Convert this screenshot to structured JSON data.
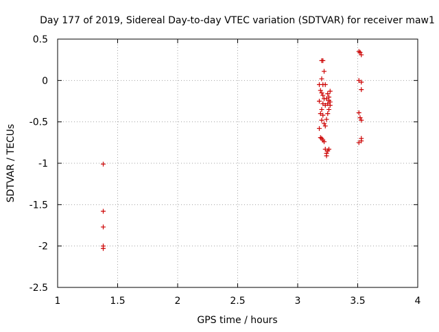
{
  "chart_data": {
    "type": "scatter",
    "title": "Day 177 of 2019, Sidereal Day-to-day VTEC variation (SDTVAR) for receiver maw1",
    "xlabel": "GPS time / hours",
    "ylabel": "SDTVAR / TECUs",
    "xlim": [
      1,
      4
    ],
    "ylim": [
      -2.5,
      0.5
    ],
    "grid": true,
    "legend": "none",
    "marker": "+",
    "color": "#cc0000",
    "x_ticks": [
      "1",
      "1.5",
      "2",
      "2.5",
      "3",
      "3.5",
      "4"
    ],
    "y_ticks": [
      "0.5",
      "0",
      "-0.5",
      "-1",
      "-1.5",
      "-2",
      "-2.5"
    ],
    "x_tick_values": [
      1,
      1.5,
      2,
      2.5,
      3,
      3.5,
      4
    ],
    "y_tick_values": [
      0.5,
      0,
      -0.5,
      -1,
      -1.5,
      -2,
      -2.5
    ],
    "series": [
      {
        "name": "SDTVAR",
        "points": [
          [
            1.38,
            -1.01
          ],
          [
            1.38,
            -1.58
          ],
          [
            1.38,
            -1.77
          ],
          [
            1.38,
            -2.0
          ],
          [
            1.38,
            -2.03
          ],
          [
            3.18,
            -0.05
          ],
          [
            3.18,
            -0.25
          ],
          [
            3.18,
            -0.58
          ],
          [
            3.19,
            -0.12
          ],
          [
            3.19,
            -0.4
          ],
          [
            3.19,
            -0.69
          ],
          [
            3.2,
            0.24
          ],
          [
            3.2,
            0.02
          ],
          [
            3.2,
            -0.15
          ],
          [
            3.2,
            -0.35
          ],
          [
            3.2,
            -0.48
          ],
          [
            3.2,
            -0.7
          ],
          [
            3.21,
            0.24
          ],
          [
            3.21,
            -0.05
          ],
          [
            3.21,
            -0.18
          ],
          [
            3.21,
            -0.28
          ],
          [
            3.21,
            -0.42
          ],
          [
            3.21,
            -0.72
          ],
          [
            3.22,
            0.11
          ],
          [
            3.22,
            -0.22
          ],
          [
            3.22,
            -0.52
          ],
          [
            3.22,
            -0.74
          ],
          [
            3.23,
            -0.05
          ],
          [
            3.23,
            -0.3
          ],
          [
            3.23,
            -0.55
          ],
          [
            3.23,
            -0.83
          ],
          [
            3.24,
            -0.22
          ],
          [
            3.24,
            -0.47
          ],
          [
            3.24,
            -0.88
          ],
          [
            3.24,
            -0.91
          ],
          [
            3.25,
            -0.16
          ],
          [
            3.25,
            -0.28
          ],
          [
            3.25,
            -0.4
          ],
          [
            3.25,
            -0.85
          ],
          [
            3.26,
            -0.2
          ],
          [
            3.26,
            -0.24
          ],
          [
            3.26,
            -0.35
          ],
          [
            3.26,
            -0.83
          ],
          [
            3.27,
            -0.13
          ],
          [
            3.27,
            -0.26
          ],
          [
            3.27,
            -0.3
          ],
          [
            3.51,
            0.35
          ],
          [
            3.51,
            0.0
          ],
          [
            3.51,
            -0.39
          ],
          [
            3.51,
            -0.75
          ],
          [
            3.52,
            0.34
          ],
          [
            3.52,
            -0.45
          ],
          [
            3.53,
            0.31
          ],
          [
            3.53,
            -0.02
          ],
          [
            3.53,
            -0.11
          ],
          [
            3.53,
            -0.48
          ],
          [
            3.53,
            -0.7
          ],
          [
            3.53,
            -0.73
          ]
        ]
      }
    ]
  }
}
